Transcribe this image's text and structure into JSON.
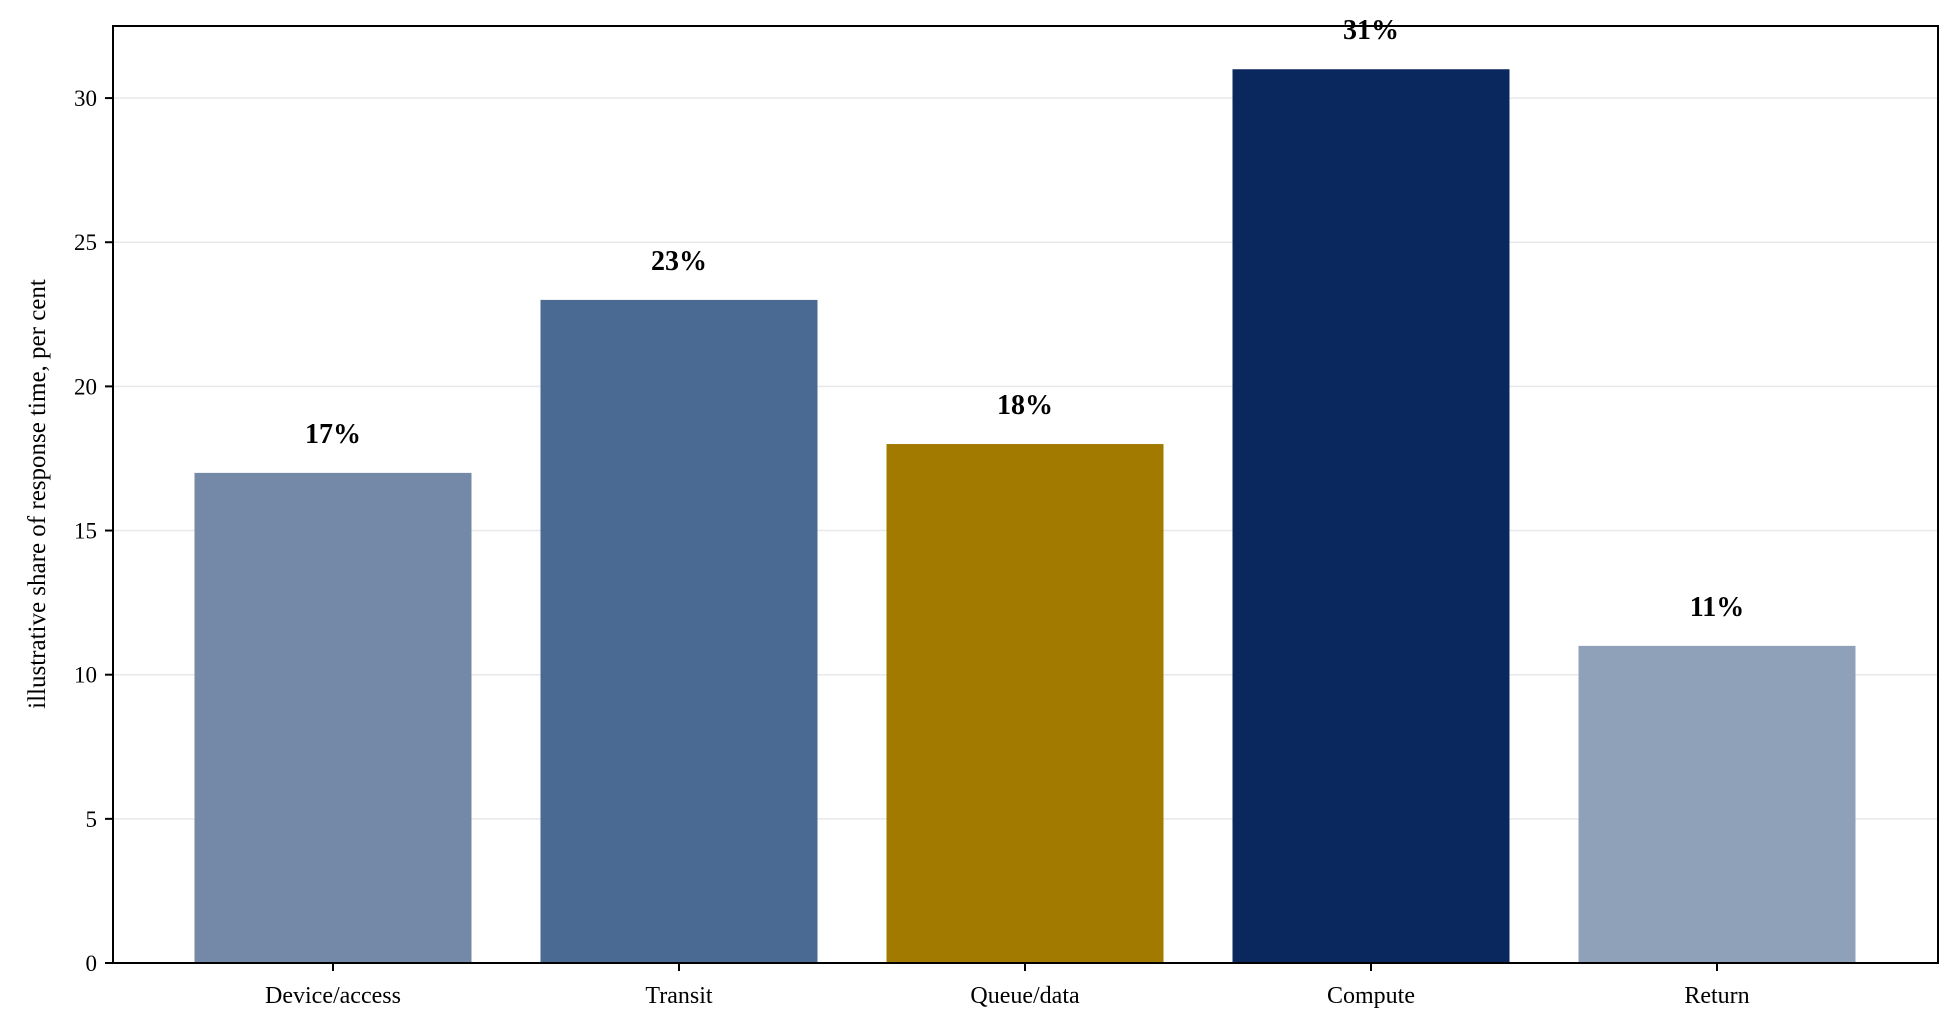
{
  "chart_data": {
    "type": "bar",
    "categories": [
      "Device/access",
      "Transit",
      "Queue/data",
      "Compute",
      "Return"
    ],
    "values": [
      17,
      23,
      18,
      31,
      11
    ],
    "data_labels": [
      "17%",
      "23%",
      "18%",
      "31%",
      "11%"
    ],
    "colors": [
      "#7489a7",
      "#4a6a94",
      "#a37a00",
      "#0a285d",
      "#8fa1b8"
    ],
    "title": "",
    "xlabel": "",
    "ylabel": "illustrative share of response time, per cent",
    "ylim": [
      0,
      32.5
    ],
    "yticks": [
      0,
      5,
      10,
      15,
      20,
      25,
      30
    ],
    "grid": "horizontal",
    "legend": "none"
  }
}
